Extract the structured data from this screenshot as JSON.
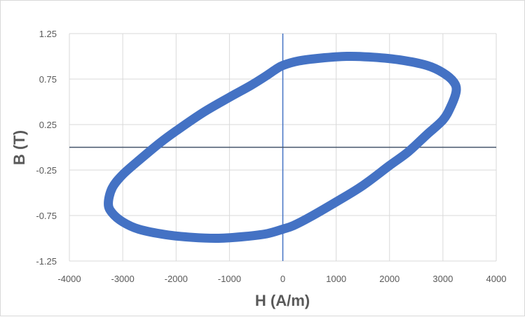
{
  "chart_data": {
    "type": "scatter",
    "title": "",
    "xlabel": "H (A/m)",
    "ylabel": "B (T)",
    "xlim": [
      -4000,
      4000
    ],
    "ylim": [
      -1.25,
      1.25
    ],
    "x_ticks": [
      -4000,
      -3000,
      -2000,
      -1000,
      0,
      1000,
      2000,
      3000,
      4000
    ],
    "y_ticks": [
      -1.25,
      -0.75,
      -0.25,
      0.25,
      0.75,
      1.25
    ],
    "x_tick_labels": [
      "-4000",
      "-3000",
      "-2000",
      "-1000",
      "0",
      "1000",
      "2000",
      "3000",
      "4000"
    ],
    "y_tick_labels": [
      "-1.25",
      "-0.75",
      "-0.25",
      "0.25",
      "0.75",
      "1.25"
    ],
    "grid": true,
    "legend": "none",
    "series_color": "#4472c4",
    "zero_line_color": "#4472c4",
    "series": [
      {
        "values": [
          [
            -150,
            0.85
          ],
          [
            0,
            0.9
          ],
          [
            300,
            0.95
          ],
          [
            700,
            0.98
          ],
          [
            1200,
            1.0
          ],
          [
            1700,
            0.99
          ],
          [
            2200,
            0.96
          ],
          [
            2700,
            0.9
          ],
          [
            3000,
            0.82
          ],
          [
            3200,
            0.72
          ],
          [
            3250,
            0.62
          ],
          [
            3150,
            0.45
          ],
          [
            3000,
            0.3
          ],
          [
            2700,
            0.14
          ],
          [
            2350,
            -0.05
          ],
          [
            2000,
            -0.2
          ],
          [
            1500,
            -0.42
          ],
          [
            1000,
            -0.6
          ],
          [
            500,
            -0.77
          ],
          [
            200,
            -0.86
          ],
          [
            0,
            -0.9
          ],
          [
            -300,
            -0.95
          ],
          [
            -700,
            -0.98
          ],
          [
            -1200,
            -1.0
          ],
          [
            -1700,
            -0.99
          ],
          [
            -2200,
            -0.96
          ],
          [
            -2700,
            -0.9
          ],
          [
            -3000,
            -0.82
          ],
          [
            -3200,
            -0.72
          ],
          [
            -3270,
            -0.62
          ],
          [
            -3200,
            -0.45
          ],
          [
            -3000,
            -0.3
          ],
          [
            -2650,
            -0.12
          ],
          [
            -2300,
            0.05
          ],
          [
            -2000,
            0.18
          ],
          [
            -1500,
            0.38
          ],
          [
            -1000,
            0.55
          ],
          [
            -600,
            0.68
          ],
          [
            -300,
            0.79
          ],
          [
            -150,
            0.85
          ]
        ]
      }
    ]
  }
}
